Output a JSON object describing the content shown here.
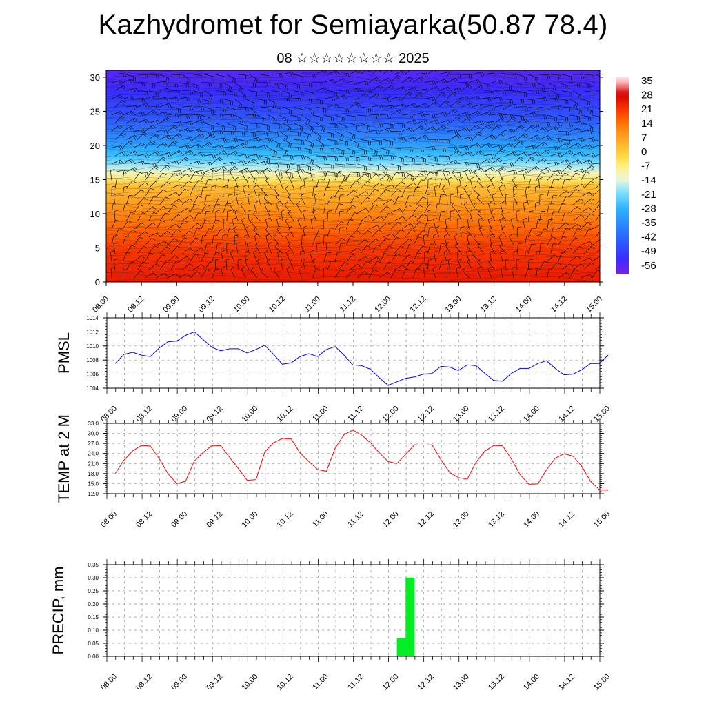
{
  "title": "Kazhydromet for Semiayarka(50.87 78.4)",
  "subtitle": "08 ☆☆☆☆☆☆☆☆ 2025",
  "chart_data": [
    {
      "id": "cross-section",
      "type": "heatmap",
      "description_kind": "temperature vertical cross-section with wind barbs",
      "x_ticks": [
        "08.00",
        "08.12",
        "09.00",
        "09.12",
        "10.00",
        "10.12",
        "11.00",
        "11.12",
        "12.00",
        "12.12",
        "13.00",
        "13.12",
        "14.00",
        "14.12",
        "15.00"
      ],
      "y_ticks": [
        0,
        5,
        10,
        15,
        20,
        25,
        30
      ],
      "ylim": [
        0,
        31
      ],
      "colorbar_labels": [
        "35",
        "28",
        "21",
        "14",
        "7",
        "0",
        "-7",
        "-14",
        "-21",
        "-28",
        "-35",
        "-42",
        "-49",
        "-56"
      ],
      "colormap": [
        "#7a1fe6",
        "#3333ff",
        "#2a6bff",
        "#1fa0ff",
        "#40d8ff",
        "#b8f0f0",
        "#fffaa0",
        "#ffe040",
        "#ffb030",
        "#ff8a10",
        "#ff5a00",
        "#f42000",
        "#d00000",
        "#ffd0d0"
      ],
      "temperature_profile": {
        "levels": [
          0,
          5,
          10,
          14,
          16,
          18,
          21,
          24,
          28,
          31
        ],
        "values": [
          24,
          20,
          11,
          2,
          -12,
          -24,
          -35,
          -45,
          -52,
          -56
        ]
      }
    },
    {
      "id": "pmsl",
      "type": "line",
      "ylabel": "PMSL",
      "ylim": [
        1004,
        1014
      ],
      "y_ticks": [
        "1004",
        "1006",
        "1008",
        "1010",
        "1012",
        "1014"
      ],
      "x_ticks": [
        "08.00",
        "08.12",
        "09.00",
        "09.12",
        "10.00",
        "10.12",
        "11.00",
        "11.12",
        "12.00",
        "12.12",
        "13.00",
        "13.12",
        "14.00",
        "14.12",
        "15.00"
      ],
      "color": "#0000ff",
      "values": [
        1007.5,
        1008.8,
        1009.1,
        1008.7,
        1008.5,
        1009.7,
        1010.6,
        1010.7,
        1011.5,
        1012.0,
        1010.9,
        1009.8,
        1009.3,
        1009.6,
        1009.6,
        1009.0,
        1009.5,
        1010.1,
        1008.8,
        1007.4,
        1007.6,
        1008.5,
        1008.9,
        1008.5,
        1009.5,
        1009.9,
        1008.7,
        1007.3,
        1007.2,
        1006.7,
        1005.5,
        1004.4,
        1004.9,
        1005.4,
        1005.6,
        1006.0,
        1006.1,
        1007.1,
        1007.0,
        1006.5,
        1007.3,
        1007.2,
        1006.1,
        1005.1,
        1005.0,
        1006.1,
        1006.8,
        1006.8,
        1007.5,
        1007.9,
        1006.8,
        1005.9,
        1006.0,
        1006.6,
        1007.5,
        1007.5,
        1008.7
      ]
    },
    {
      "id": "temp2m",
      "type": "line",
      "ylabel": "TEMP at 2 M",
      "ylim": [
        12,
        33
      ],
      "y_ticks": [
        "12.0",
        "15.0",
        "18.0",
        "21.0",
        "24.0",
        "27.0",
        "30.0",
        "33.0"
      ],
      "x_ticks": [
        "08.00",
        "08.12",
        "09.00",
        "09.12",
        "10.00",
        "10.12",
        "11.00",
        "11.12",
        "12.00",
        "12.12",
        "13.00",
        "13.12",
        "14.00",
        "14.12",
        "15.00"
      ],
      "color": "#ff0000",
      "values": [
        18.0,
        22.0,
        24.8,
        26.4,
        26.2,
        22.5,
        18.0,
        15.0,
        15.7,
        21.8,
        24.3,
        26.4,
        26.3,
        22.8,
        19.5,
        16.0,
        16.2,
        24.5,
        27.2,
        28.5,
        28.3,
        24.2,
        21.6,
        19.2,
        18.7,
        25.6,
        29.6,
        31.0,
        29.5,
        27.2,
        24.2,
        21.6,
        21.0,
        23.7,
        26.6,
        26.5,
        26.6,
        22.2,
        18.3,
        16.8,
        16.3,
        21.4,
        24.7,
        26.4,
        26.3,
        22.4,
        17.7,
        14.8,
        14.9,
        19.1,
        22.6,
        23.9,
        23.2,
        20.2,
        15.7,
        13.2,
        13.0
      ]
    },
    {
      "id": "precip",
      "type": "bar",
      "ylabel": "PRECIP, mm",
      "ylim": [
        0,
        0.35
      ],
      "y_ticks": [
        "0.00",
        "0.05",
        "0.10",
        "0.15",
        "0.20",
        "0.25",
        "0.30",
        "0.35"
      ],
      "x_ticks": [
        "08.00",
        "08.12",
        "09.00",
        "09.12",
        "10.00",
        "10.12",
        "11.00",
        "11.12",
        "12.00",
        "12.12",
        "13.00",
        "13.12",
        "14.00",
        "14.12",
        "15.00"
      ],
      "color": "#00ee22",
      "bars": [
        {
          "x_hours": 96,
          "width_hours": 3,
          "value": 0.07
        },
        {
          "x_hours": 99,
          "width_hours": 3,
          "value": 0.3
        }
      ]
    }
  ]
}
